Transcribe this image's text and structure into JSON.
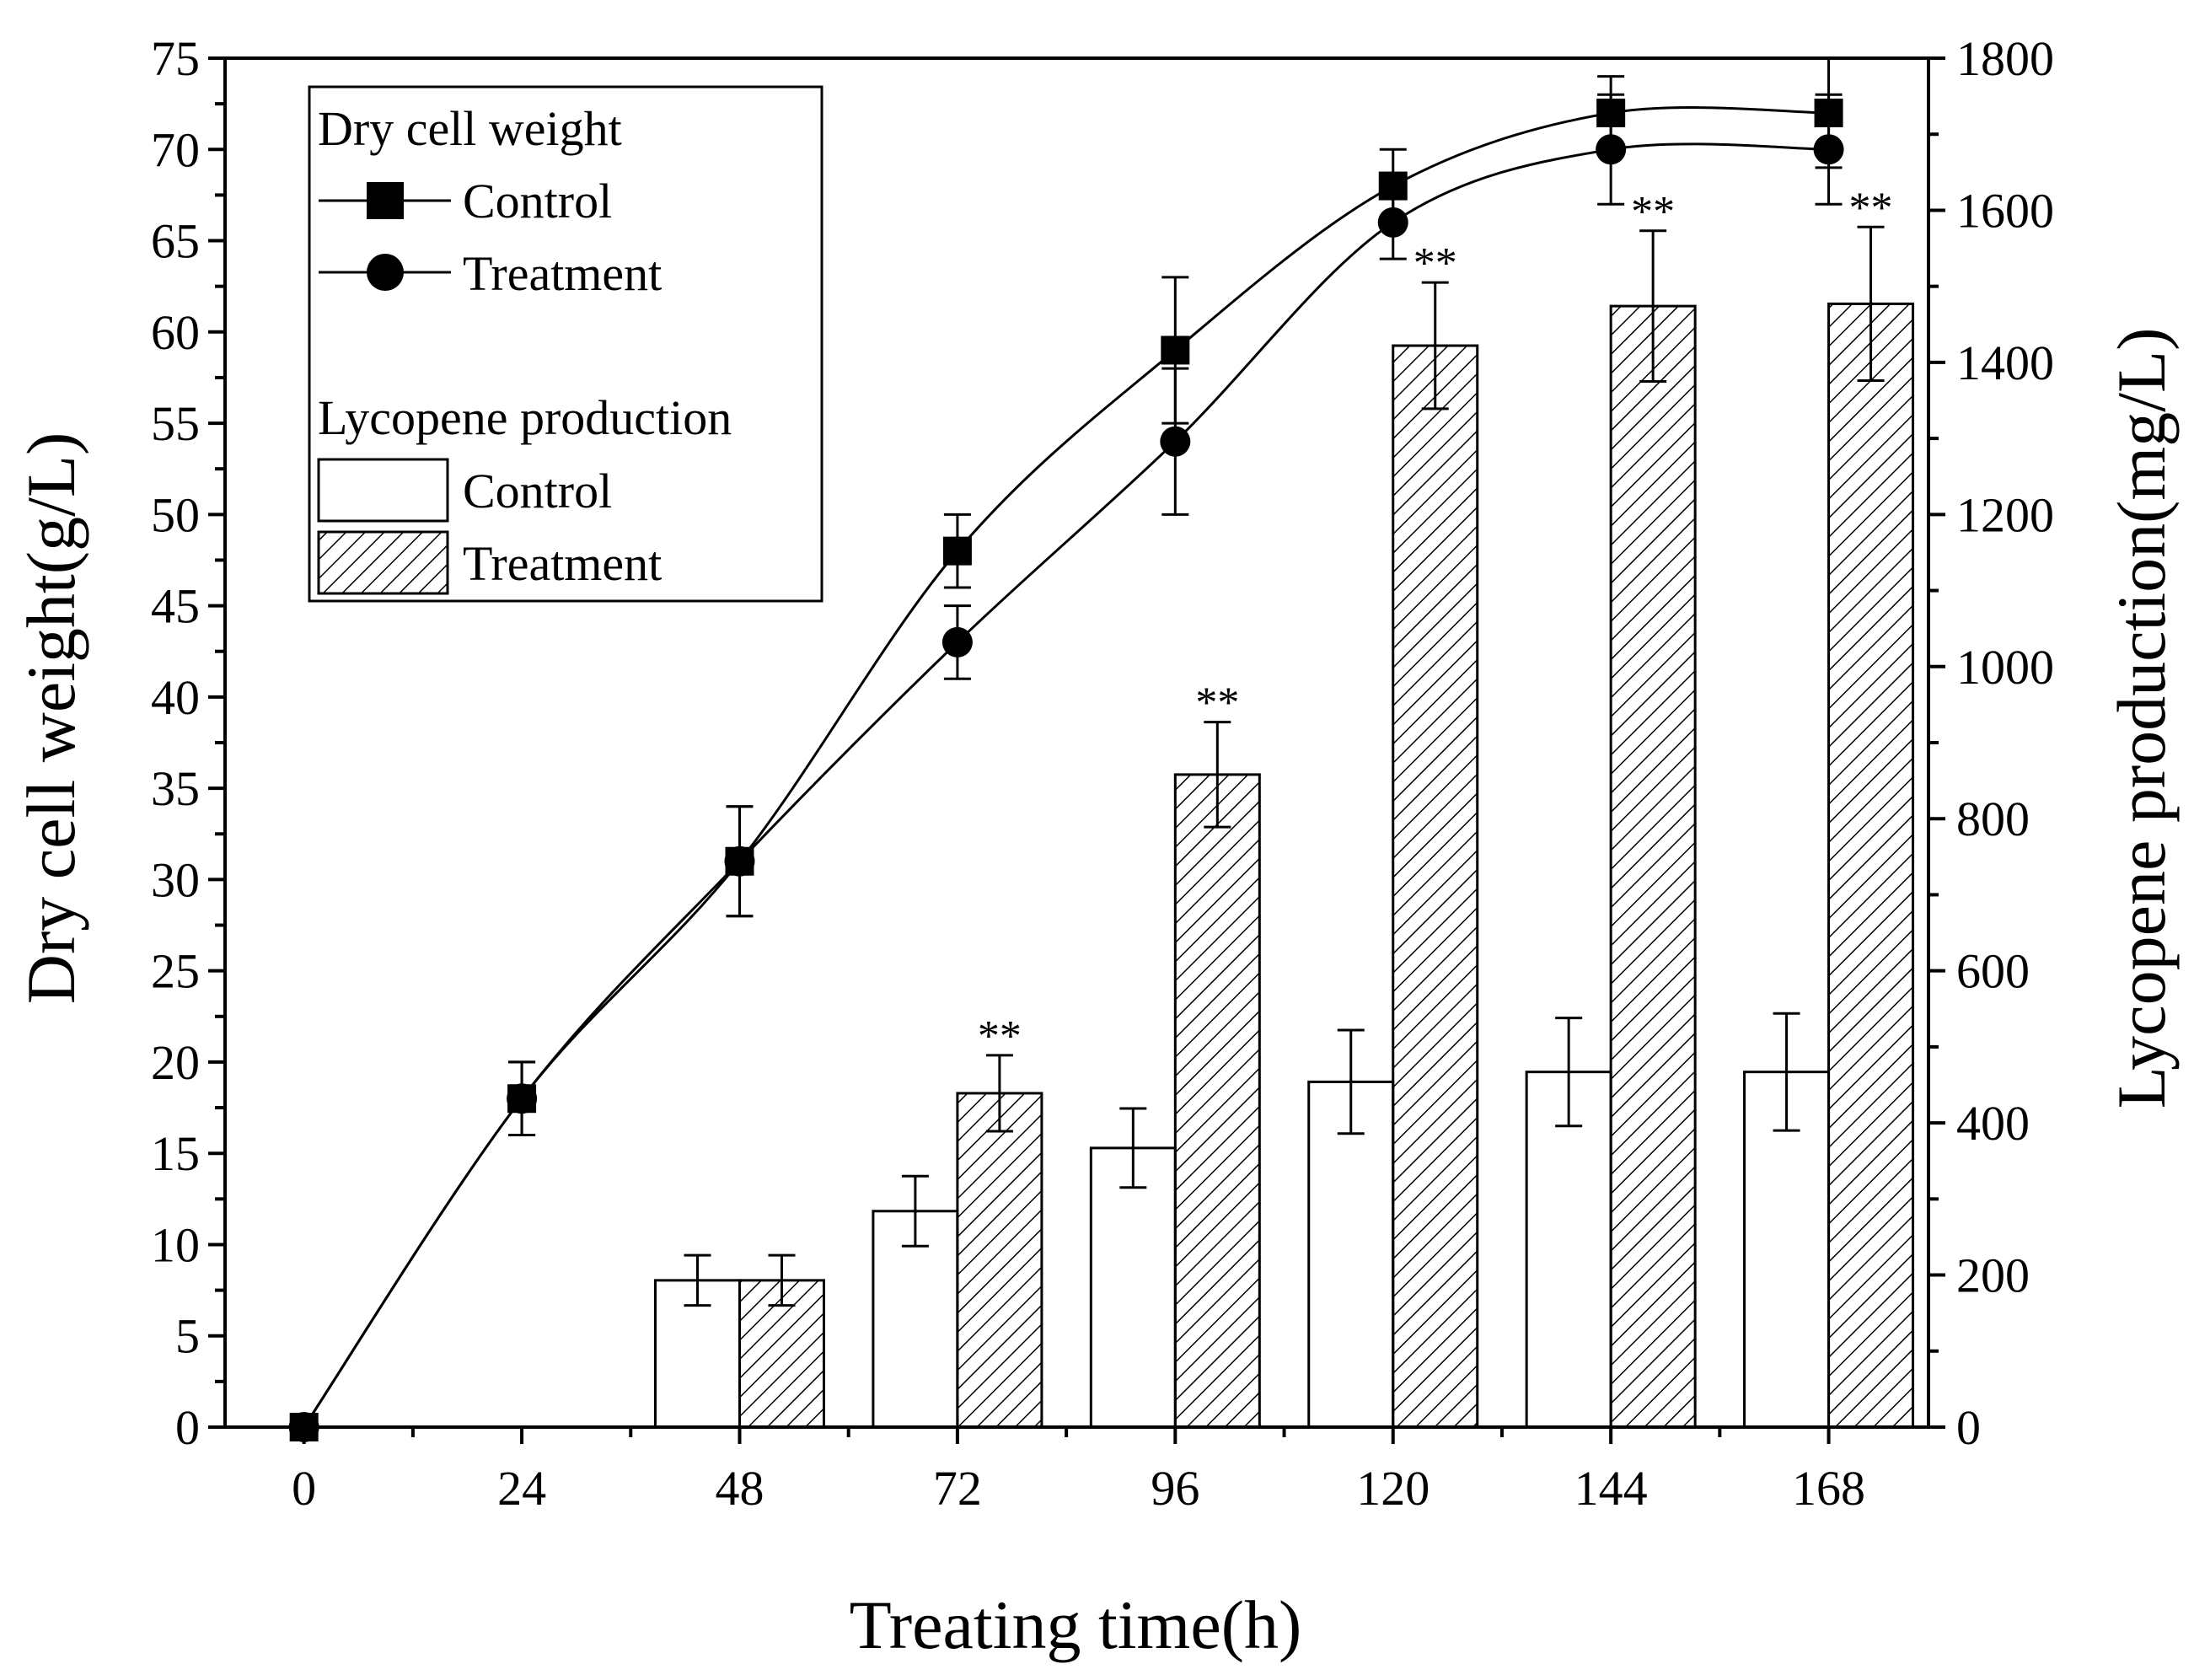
{
  "chart_data": {
    "type": "bar",
    "x": [
      0,
      24,
      48,
      72,
      96,
      120,
      144,
      168
    ],
    "x_ticks": [
      "0",
      "24",
      "48",
      "72",
      "96",
      "120",
      "144",
      "168"
    ],
    "xlabel": "Treating time(h)",
    "ylabel": "Dry cell weight(g/L)",
    "y2label": "Lycopene production(mg/L)",
    "ylim": [
      0,
      75
    ],
    "y2lim": [
      0,
      1800
    ],
    "y_ticks": [
      "0",
      "5",
      "10",
      "15",
      "20",
      "25",
      "30",
      "35",
      "40",
      "45",
      "50",
      "55",
      "60",
      "65",
      "70",
      "75"
    ],
    "y2_ticks": [
      "0",
      "200",
      "400",
      "600",
      "800",
      "1000",
      "1200",
      "1400",
      "1600",
      "1800"
    ],
    "line_series": [
      {
        "name": "Control",
        "axis": "left",
        "marker": "square",
        "x": [
          0,
          24,
          48,
          72,
          96,
          120,
          144,
          168
        ],
        "values": [
          0,
          18,
          31,
          48,
          59,
          68,
          72,
          72
        ],
        "errors": [
          0,
          2,
          3,
          2,
          4,
          2,
          2,
          3
        ]
      },
      {
        "name": "Treatment",
        "axis": "left",
        "marker": "circle",
        "x": [
          0,
          24,
          48,
          72,
          96,
          120,
          144,
          168
        ],
        "values": [
          0,
          18,
          31,
          43,
          54,
          66,
          70,
          70
        ],
        "errors": [
          0,
          2,
          3,
          2,
          4,
          2,
          3,
          3
        ]
      }
    ],
    "bar_series": [
      {
        "name": "Control",
        "axis": "right",
        "fill": "white",
        "x": [
          48,
          72,
          96,
          120,
          144,
          168
        ],
        "values": [
          193,
          284,
          367,
          454,
          467,
          467
        ],
        "errors": [
          33,
          46,
          52,
          68,
          71,
          77
        ]
      },
      {
        "name": "Treatment",
        "axis": "right",
        "fill": "hatched",
        "x": [
          48,
          72,
          96,
          120,
          144,
          168
        ],
        "values": [
          193,
          439,
          858,
          1422,
          1474,
          1477
        ],
        "errors": [
          33,
          50,
          69,
          83,
          99,
          101
        ],
        "significance": [
          "",
          "**",
          "**",
          "**",
          "**",
          "**"
        ]
      }
    ],
    "legend": {
      "placement": "top-left",
      "group1_title": "Dry cell weight",
      "group1_items": [
        "Control",
        "Treatment"
      ],
      "group2_title": "Lycopene production",
      "group2_items": [
        "Control",
        "Treatment"
      ]
    },
    "grid": false,
    "colors": {
      "line": "#000000",
      "bar_edge": "#000000",
      "bar_fill": "#ffffff"
    }
  }
}
